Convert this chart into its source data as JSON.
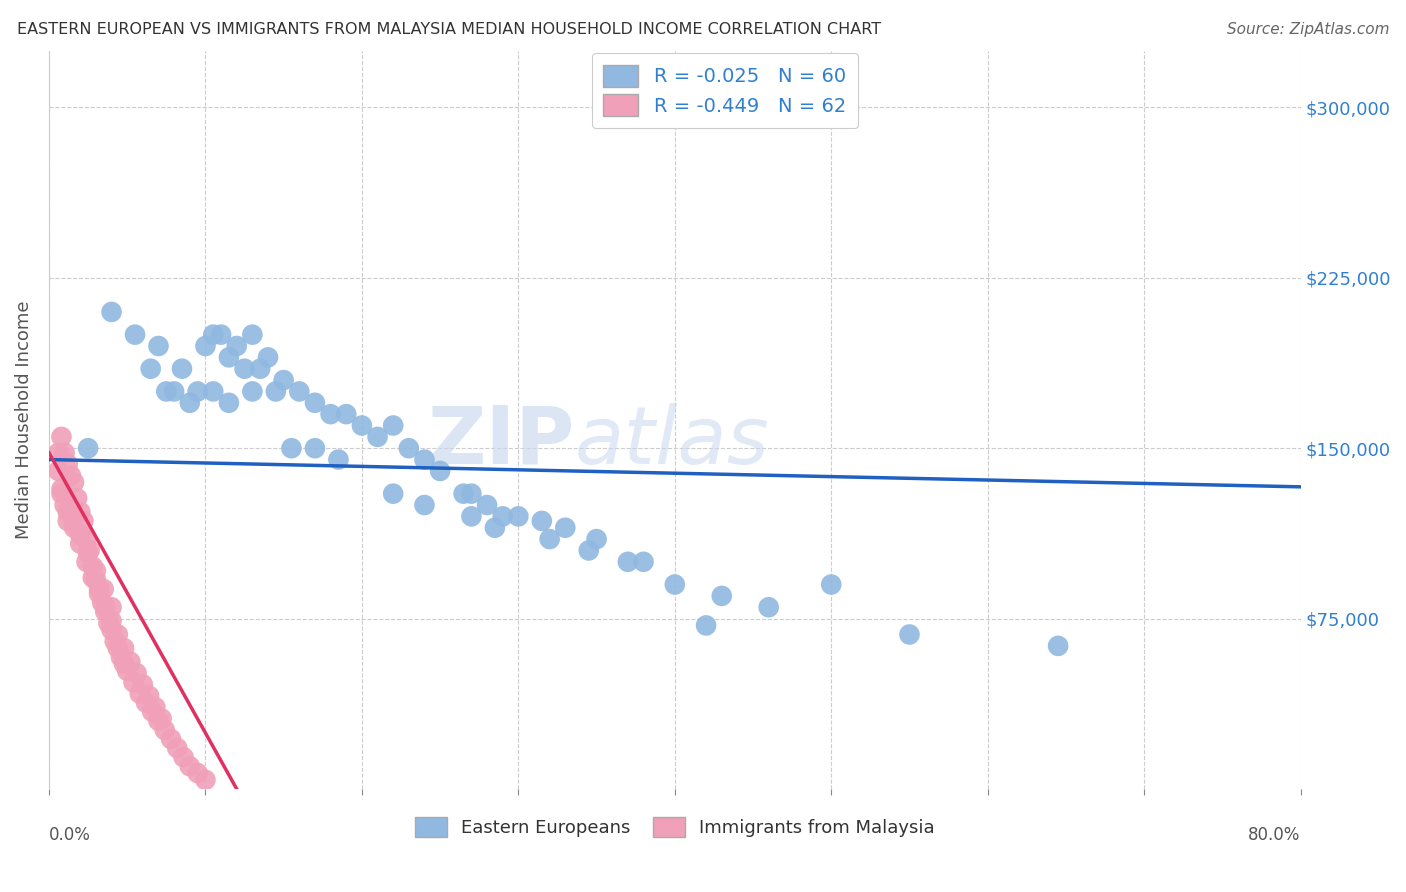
{
  "title": "EASTERN EUROPEAN VS IMMIGRANTS FROM MALAYSIA MEDIAN HOUSEHOLD INCOME CORRELATION CHART",
  "source": "Source: ZipAtlas.com",
  "ylabel": "Median Household Income",
  "watermark_zip": "ZIP",
  "watermark_atlas": "atlas",
  "blue_line_color": "#2060c0",
  "pink_line_color": "#e03060",
  "blue_dot_color": "#90b8e0",
  "pink_dot_color": "#f0a0b8",
  "grid_color": "#cccccc",
  "bg_color": "#ffffff",
  "title_color": "#333333",
  "right_label_color": "#3080d0",
  "xlim": [
    0.0,
    0.8
  ],
  "ylim": [
    0,
    325000
  ],
  "ytick_vals": [
    0,
    75000,
    150000,
    225000,
    300000
  ],
  "ytick_labels": [
    "",
    "$75,000",
    "$150,000",
    "$225,000",
    "$300,000"
  ],
  "xtick_vals": [
    0.0,
    0.1,
    0.2,
    0.3,
    0.4,
    0.5,
    0.6,
    0.7,
    0.8
  ],
  "blue_x": [
    0.025,
    0.04,
    0.055,
    0.065,
    0.07,
    0.075,
    0.08,
    0.085,
    0.09,
    0.095,
    0.1,
    0.105,
    0.11,
    0.115,
    0.12,
    0.125,
    0.13,
    0.135,
    0.14,
    0.145,
    0.15,
    0.16,
    0.17,
    0.18,
    0.19,
    0.2,
    0.21,
    0.22,
    0.23,
    0.24,
    0.25,
    0.265,
    0.28,
    0.29,
    0.3,
    0.315,
    0.33,
    0.35,
    0.37,
    0.4,
    0.43,
    0.46,
    0.5,
    0.55,
    0.645,
    0.105,
    0.115,
    0.13,
    0.155,
    0.17,
    0.185,
    0.22,
    0.24,
    0.27,
    0.345,
    0.38,
    0.27,
    0.285,
    0.32,
    0.42
  ],
  "blue_y": [
    150000,
    210000,
    200000,
    185000,
    195000,
    175000,
    175000,
    185000,
    170000,
    175000,
    195000,
    200000,
    200000,
    190000,
    195000,
    185000,
    200000,
    185000,
    190000,
    175000,
    180000,
    175000,
    170000,
    165000,
    165000,
    160000,
    155000,
    160000,
    150000,
    145000,
    140000,
    130000,
    125000,
    120000,
    120000,
    118000,
    115000,
    110000,
    100000,
    90000,
    85000,
    80000,
    90000,
    68000,
    63000,
    175000,
    170000,
    175000,
    150000,
    150000,
    145000,
    130000,
    125000,
    130000,
    105000,
    100000,
    120000,
    115000,
    110000,
    72000
  ],
  "pink_x": [
    0.006,
    0.008,
    0.01,
    0.012,
    0.014,
    0.016,
    0.018,
    0.02,
    0.022,
    0.024,
    0.026,
    0.028,
    0.03,
    0.032,
    0.034,
    0.036,
    0.038,
    0.04,
    0.042,
    0.044,
    0.046,
    0.048,
    0.05,
    0.054,
    0.058,
    0.062,
    0.066,
    0.07,
    0.074,
    0.078,
    0.082,
    0.086,
    0.09,
    0.095,
    0.1,
    0.008,
    0.012,
    0.016,
    0.02,
    0.024,
    0.028,
    0.032,
    0.036,
    0.04,
    0.044,
    0.048,
    0.052,
    0.056,
    0.06,
    0.064,
    0.068,
    0.072,
    0.015,
    0.02,
    0.025,
    0.03,
    0.035,
    0.04,
    0.006,
    0.008,
    0.01,
    0.012
  ],
  "pink_y": [
    148000,
    155000,
    148000,
    143000,
    138000,
    135000,
    128000,
    122000,
    118000,
    110000,
    105000,
    98000,
    92000,
    88000,
    82000,
    78000,
    73000,
    70000,
    65000,
    62000,
    58000,
    55000,
    52000,
    47000,
    42000,
    38000,
    34000,
    30000,
    26000,
    22000,
    18000,
    14000,
    10000,
    7000,
    4000,
    130000,
    122000,
    115000,
    108000,
    100000,
    93000,
    86000,
    80000,
    74000,
    68000,
    62000,
    56000,
    51000,
    46000,
    41000,
    36000,
    31000,
    120000,
    112000,
    104000,
    96000,
    88000,
    80000,
    140000,
    132000,
    125000,
    118000
  ],
  "blue_line_x0": 0.0,
  "blue_line_x1": 0.8,
  "blue_line_y0": 145000,
  "blue_line_y1": 133000,
  "pink_line_x0": 0.0,
  "pink_line_x1": 0.12,
  "pink_line_y0": 148000,
  "pink_line_y1": 0
}
